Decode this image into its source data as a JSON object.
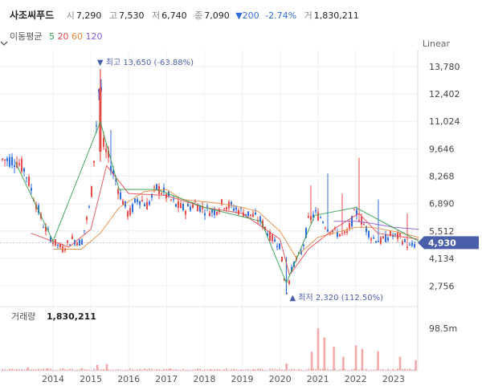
{
  "header": {
    "name": "사조씨푸드",
    "open_label": "시",
    "open": "7,290",
    "high_label": "고",
    "high": "7,530",
    "low_label": "저",
    "low": "6,740",
    "close_label": "종",
    "close": "7,090",
    "change": "▼200",
    "change_pct": "-2.74%",
    "volume_label": "거",
    "volume": "1,830,211"
  },
  "ma": {
    "label": "이동평균",
    "periods": [
      "5",
      "20",
      "60",
      "120"
    ],
    "colors": [
      "#2e9e4a",
      "#e84a4a",
      "#e8873a",
      "#8a5bd6"
    ]
  },
  "scale": {
    "label": "Linear",
    "icon": "chevron-down-icon"
  },
  "colors": {
    "up": "#e84a4a",
    "down": "#2f6fdd",
    "volume": "#f3a6a6",
    "badge": "#4a5faa"
  },
  "chart_data": [
    {
      "type": "candlestick",
      "title": "",
      "x_ticks": [
        "2014",
        "2015",
        "2016",
        "2017",
        "2018",
        "2019",
        "2020",
        "2021",
        "2022",
        "2023"
      ],
      "y_ticks": [
        "13,780",
        "12,402",
        "11,024",
        "9,646",
        "8,268",
        "6,890",
        "5,512",
        "4,134",
        "2,756"
      ],
      "ylim": [
        2000,
        14300
      ],
      "current_price": 4930,
      "current_price_label": "4,930",
      "annotations": [
        {
          "text": "최고 13,650 (-63.88%)",
          "x": "2015-04",
          "y": 13650,
          "marker": "▼"
        },
        {
          "text": "최저 2,320 (112.50%)",
          "x": "2020-03",
          "y": 2320,
          "marker": "▲"
        }
      ],
      "price_points": [
        [
          "2013-01",
          9100
        ],
        [
          "2013-04",
          8600
        ],
        [
          "2013-07",
          7200
        ],
        [
          "2013-10",
          5800
        ],
        [
          "2014-01",
          5000
        ],
        [
          "2014-04",
          4600
        ],
        [
          "2014-07",
          5100
        ],
        [
          "2014-10",
          4900
        ],
        [
          "2015-01",
          7000
        ],
        [
          "2015-04",
          13650
        ],
        [
          "2015-05",
          9800
        ],
        [
          "2015-07",
          9000
        ],
        [
          "2015-10",
          7500
        ],
        [
          "2016-01",
          6300
        ],
        [
          "2016-04",
          7200
        ],
        [
          "2016-07",
          6800
        ],
        [
          "2016-10",
          7700
        ],
        [
          "2017-01",
          7300
        ],
        [
          "2017-04",
          6800
        ],
        [
          "2017-07",
          6600
        ],
        [
          "2017-10",
          6900
        ],
        [
          "2018-01",
          6600
        ],
        [
          "2018-04",
          6500
        ],
        [
          "2018-07",
          6900
        ],
        [
          "2018-10",
          6700
        ],
        [
          "2019-01",
          6500
        ],
        [
          "2019-04",
          6300
        ],
        [
          "2019-07",
          6000
        ],
        [
          "2019-10",
          5200
        ],
        [
          "2020-01",
          4800
        ],
        [
          "2020-03",
          2320
        ],
        [
          "2020-05",
          3800
        ],
        [
          "2020-08",
          4500
        ],
        [
          "2020-10",
          6000
        ],
        [
          "2020-12",
          6400
        ],
        [
          "2021-02",
          6200
        ],
        [
          "2021-04",
          5700
        ],
        [
          "2021-07",
          5400
        ],
        [
          "2021-10",
          5300
        ],
        [
          "2022-01",
          6500
        ],
        [
          "2022-03",
          6000
        ],
        [
          "2022-06",
          5200
        ],
        [
          "2022-09",
          5000
        ],
        [
          "2022-12",
          5300
        ],
        [
          "2023-03",
          5200
        ],
        [
          "2023-06",
          4700
        ],
        [
          "2023-09",
          4930
        ]
      ],
      "spikes": [
        [
          "2015-07",
          10600
        ],
        [
          "2020-11",
          7800
        ],
        [
          "2021-04",
          8400
        ],
        [
          "2021-09",
          7400
        ],
        [
          "2022-02",
          9200
        ],
        [
          "2022-08",
          7100
        ],
        [
          "2023-05",
          6400
        ]
      ],
      "ma_series": [
        {
          "name": "120",
          "color": "#8a5bd6",
          "values": [
            [
              "2021-06",
              6000
            ],
            [
              "2022-01",
              6000
            ],
            [
              "2022-06",
              5900
            ],
            [
              "2023-01",
              5700
            ],
            [
              "2023-09",
              5600
            ]
          ]
        },
        {
          "name": "60",
          "color": "#e8873a",
          "values": [
            [
              "2014-01",
              4600
            ],
            [
              "2014-10",
              4600
            ],
            [
              "2015-04",
              5400
            ],
            [
              "2015-10",
              6700
            ],
            [
              "2016-06",
              7500
            ],
            [
              "2017-01",
              7600
            ],
            [
              "2017-06",
              7100
            ],
            [
              "2018-06",
              6900
            ],
            [
              "2019-01",
              6700
            ],
            [
              "2019-06",
              6500
            ],
            [
              "2020-01",
              5500
            ],
            [
              "2020-06",
              4200
            ],
            [
              "2021-01",
              5200
            ],
            [
              "2021-06",
              5400
            ],
            [
              "2022-01",
              5700
            ],
            [
              "2022-06",
              5700
            ],
            [
              "2023-01",
              5500
            ],
            [
              "2023-09",
              5200
            ]
          ]
        },
        {
          "name": "20",
          "color": "#e84a4a",
          "values": [
            [
              "2013-06",
              5400
            ],
            [
              "2014-06",
              4700
            ],
            [
              "2015-01",
              5600
            ],
            [
              "2015-06",
              8800
            ],
            [
              "2016-01",
              7400
            ],
            [
              "2017-01",
              7300
            ],
            [
              "2018-01",
              6700
            ],
            [
              "2019-01",
              6400
            ],
            [
              "2020-01",
              5100
            ],
            [
              "2020-04",
              3300
            ],
            [
              "2020-10",
              4600
            ],
            [
              "2021-06",
              5600
            ],
            [
              "2022-02",
              6400
            ],
            [
              "2022-08",
              5400
            ],
            [
              "2023-09",
              5100
            ]
          ]
        },
        {
          "name": "5",
          "color": "#2e9e4a",
          "values": [
            [
              "2013-01",
              9000
            ],
            [
              "2014-01",
              5000
            ],
            [
              "2015-04",
              11000
            ],
            [
              "2015-10",
              7600
            ],
            [
              "2016-10",
              7600
            ],
            [
              "2018-01",
              6700
            ],
            [
              "2019-07",
              6000
            ],
            [
              "2020-03",
              2900
            ],
            [
              "2020-12",
              6300
            ],
            [
              "2022-01",
              6700
            ],
            [
              "2023-09",
              5000
            ]
          ]
        }
      ],
      "volume": {
        "label": "거래량",
        "value": "1,830,211",
        "ylabel": "98.5m",
        "bars": [
          [
            "2013-05",
            8
          ],
          [
            "2013-11",
            6
          ],
          [
            "2014-04",
            5
          ],
          [
            "2014-10",
            6
          ],
          [
            "2015-03",
            14
          ],
          [
            "2015-06",
            16
          ],
          [
            "2016-06",
            5
          ],
          [
            "2017-02",
            5
          ],
          [
            "2018-03",
            4
          ],
          [
            "2019-05",
            3
          ],
          [
            "2020-03",
            17
          ],
          [
            "2020-11",
            45
          ],
          [
            "2021-01",
            100
          ],
          [
            "2021-03",
            78
          ],
          [
            "2021-06",
            57
          ],
          [
            "2021-09",
            33
          ],
          [
            "2022-01",
            60
          ],
          [
            "2022-03",
            52
          ],
          [
            "2022-08",
            46
          ],
          [
            "2023-03",
            33
          ],
          [
            "2023-08",
            25
          ]
        ]
      }
    }
  ]
}
